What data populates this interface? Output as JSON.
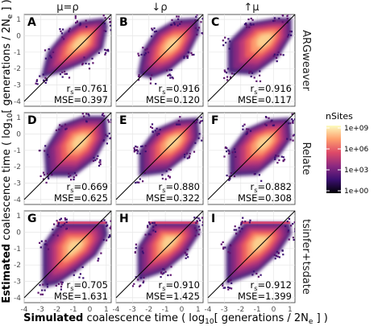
{
  "chart_data": {
    "type": "heatmap",
    "xlabel": {
      "bold": "Simulated",
      "rest": " coalescence time ( log",
      "sub": "10",
      "rest2": "[ generations / 2N",
      "sub2": "e",
      "end": " ] )"
    },
    "ylabel": {
      "bold": "Estimated",
      "rest": " coalescence time ( log",
      "sub": "10",
      "rest2": "[ generations / 2N",
      "sub2": "e",
      "end": " ] )"
    },
    "columns": [
      "μ=ρ",
      "↓ρ",
      "↑μ"
    ],
    "rows": [
      "ARGweaver",
      "Relate",
      "tsinfer+tsdate"
    ],
    "x_ticks": [
      "-4",
      "-3",
      "-2",
      "-1",
      "0",
      "1"
    ],
    "y_ticks": [
      "1",
      "0",
      "-1",
      "-2",
      "-3",
      "-4"
    ],
    "xlim": [
      -4,
      1.3
    ],
    "ylim": [
      -4.3,
      1.3
    ],
    "legend": {
      "title": "nSites",
      "labels": [
        "1e+09",
        "1e+06",
        "1e+03",
        "1e+00"
      ],
      "colors": [
        "#fcfdbf",
        "#fe9f6d",
        "#de4968",
        "#8c2981",
        "#3b0f70",
        "#000004"
      ]
    },
    "panels": [
      {
        "label": "A",
        "r_label": "r",
        "r_sub": "s",
        "r_value": "=0.761",
        "mse": "MSE=0.397"
      },
      {
        "label": "B",
        "r_label": "r",
        "r_sub": "s",
        "r_value": "=0.916",
        "mse": "MSE=0.120"
      },
      {
        "label": "C",
        "r_label": "r",
        "r_sub": "s",
        "r_value": "=0.916",
        "mse": "MSE=0.117"
      },
      {
        "label": "D",
        "r_label": "r",
        "r_sub": "s",
        "r_value": "=0.669",
        "mse": "MSE=0.625"
      },
      {
        "label": "E",
        "r_label": "r",
        "r_sub": "s",
        "r_value": "=0.880",
        "mse": "MSE=0.322"
      },
      {
        "label": "F",
        "r_label": "r",
        "r_sub": "s",
        "r_value": "=0.882",
        "mse": "MSE=0.308"
      },
      {
        "label": "G",
        "r_label": "r",
        "r_sub": "s",
        "r_value": "=0.705",
        "mse": "MSE=1.631"
      },
      {
        "label": "H",
        "r_label": "r",
        "r_sub": "s",
        "r_value": "=0.910",
        "mse": "MSE=1.425"
      },
      {
        "label": "I",
        "r_label": "r",
        "r_sub": "s",
        "r_value": "=0.912",
        "mse": "MSE=1.399"
      }
    ]
  }
}
